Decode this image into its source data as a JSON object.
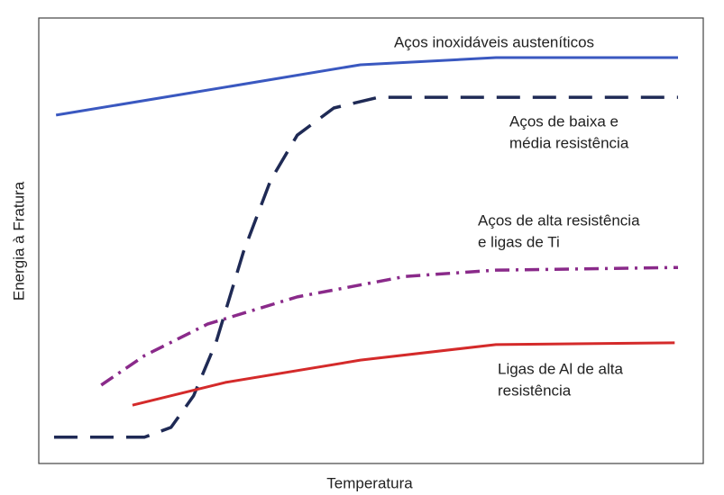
{
  "chart_data": {
    "type": "line",
    "xlabel": "Temperatura",
    "ylabel": "Energia à Fratura",
    "xlim": [
      0,
      100
    ],
    "ylim": [
      0,
      100
    ],
    "series": [
      {
        "labels": [
          "Aços inoxidáveis austeníticos"
        ],
        "color": "#3a58c0",
        "style": "solid",
        "x": [
          2.6,
          21.3,
          48.4,
          68.8,
          96.2
        ],
        "values": [
          78.2,
          82.8,
          89.5,
          91.1,
          91.1
        ]
      },
      {
        "labels": [
          "Aços de baixa e",
          "média resistência"
        ],
        "color": "#1f2a55",
        "style": "dash",
        "x": [
          2.3,
          15.9,
          19.9,
          23.3,
          26.7,
          30.8,
          34.9,
          38.9,
          44.4,
          51.1,
          96.2
        ],
        "values": [
          5.9,
          5.9,
          8.1,
          15.2,
          27.3,
          47.5,
          63.6,
          73.7,
          79.8,
          82.2,
          82.2
        ]
      },
      {
        "labels": [
          "Aços de alta resistência",
          "e ligas de Ti"
        ],
        "color": "#8a2a8a",
        "style": "dashdot",
        "x": [
          9.4,
          15.9,
          25.4,
          38.9,
          55.2,
          68.8,
          96.2
        ],
        "values": [
          17.6,
          24.2,
          31.3,
          37.4,
          42.0,
          43.4,
          44.0
        ]
      },
      {
        "labels": [
          "Ligas de Al de alta",
          "resistência"
        ],
        "color": "#d42a2a",
        "style": "solid",
        "x": [
          14.1,
          28.1,
          48.4,
          68.8,
          95.7
        ],
        "values": [
          13.1,
          18.2,
          23.2,
          26.7,
          27.1
        ]
      }
    ]
  }
}
